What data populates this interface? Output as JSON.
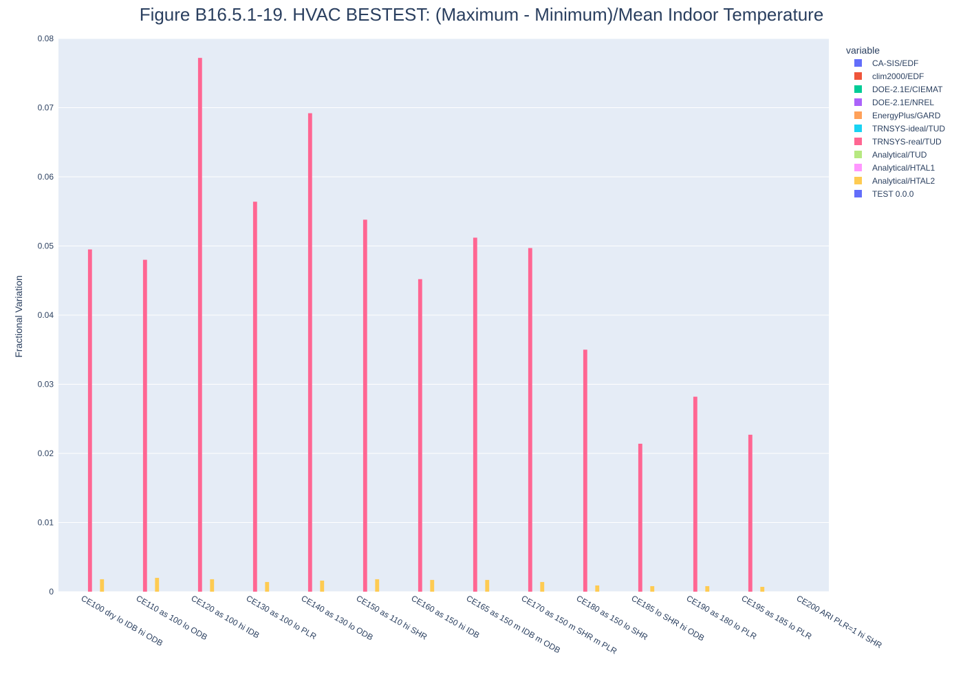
{
  "chart_data": {
    "type": "bar",
    "title": "Figure B16.5.1-19. HVAC BESTEST: (Maximum - Minimum)/Mean Indoor Temperature",
    "xlabel": "",
    "ylabel": "Fractional Variation",
    "ylim": [
      0,
      0.08
    ],
    "yticks": [
      0,
      0.01,
      0.02,
      0.03,
      0.04,
      0.05,
      0.06,
      0.07,
      0.08
    ],
    "ytick_labels": [
      "0",
      "0.01",
      "0.02",
      "0.03",
      "0.04",
      "0.05",
      "0.06",
      "0.07",
      "0.08"
    ],
    "grid": true,
    "legend_title": "variable",
    "legend_position": "right",
    "categories": [
      "CE100 dry lo IDB hi ODB",
      "CE110 as 100 lo ODB",
      "CE120 as 100 hi IDB",
      "CE130 as 100 lo PLR",
      "CE140 as 130 lo ODB",
      "CE150 as 110 hi SHR",
      "CE160 as 150 hi IDB",
      "CE165 as 150 m IDB m ODB",
      "CE170 as 150 m SHR m PLR",
      "CE180 as 150 lo SHR",
      "CE185 lo SHR hi ODB",
      "CE190 as 180 lo PLR",
      "CE195 as 185 lo PLR",
      "CE200 ARI  PLR=1 hi SHR"
    ],
    "series": [
      {
        "name": "CA-SIS/EDF",
        "color": "#636efa",
        "values": [
          null,
          null,
          null,
          null,
          null,
          null,
          null,
          null,
          null,
          null,
          null,
          null,
          null,
          null
        ]
      },
      {
        "name": "clim2000/EDF",
        "color": "#EF553B",
        "values": [
          null,
          null,
          null,
          null,
          null,
          null,
          null,
          null,
          null,
          null,
          null,
          null,
          null,
          null
        ]
      },
      {
        "name": "DOE-2.1E/CIEMAT",
        "color": "#00cc96",
        "values": [
          null,
          null,
          null,
          null,
          null,
          null,
          null,
          null,
          null,
          null,
          null,
          null,
          null,
          null
        ]
      },
      {
        "name": "DOE-2.1E/NREL",
        "color": "#ab63fa",
        "values": [
          null,
          null,
          null,
          null,
          null,
          null,
          null,
          null,
          null,
          null,
          null,
          null,
          null,
          null
        ]
      },
      {
        "name": "EnergyPlus/GARD",
        "color": "#FFA15A",
        "values": [
          null,
          null,
          null,
          null,
          null,
          null,
          null,
          null,
          null,
          null,
          null,
          null,
          null,
          null
        ]
      },
      {
        "name": "TRNSYS-ideal/TUD",
        "color": "#19d3f3",
        "values": [
          null,
          null,
          null,
          null,
          null,
          null,
          null,
          null,
          null,
          null,
          null,
          null,
          null,
          null
        ]
      },
      {
        "name": "TRNSYS-real/TUD",
        "color": "#FF6692",
        "values": [
          0.0495,
          0.048,
          0.0772,
          0.0564,
          0.0692,
          0.0538,
          0.0452,
          0.0512,
          0.0497,
          0.035,
          0.0214,
          0.0282,
          0.0227,
          null
        ]
      },
      {
        "name": "Analytical/TUD",
        "color": "#B6E880",
        "values": [
          null,
          null,
          null,
          null,
          null,
          null,
          null,
          null,
          null,
          null,
          null,
          null,
          null,
          null
        ]
      },
      {
        "name": "Analytical/HTAL1",
        "color": "#FF97FF",
        "values": [
          null,
          null,
          null,
          null,
          null,
          null,
          null,
          null,
          null,
          null,
          null,
          null,
          null,
          null
        ]
      },
      {
        "name": "Analytical/HTAL2",
        "color": "#FECB52",
        "values": [
          0.0018,
          0.002,
          0.0018,
          0.0014,
          0.0016,
          0.0018,
          0.0017,
          0.0017,
          0.0014,
          0.0009,
          0.0008,
          0.0008,
          0.0007,
          null
        ]
      },
      {
        "name": "TEST 0.0.0",
        "color": "#636efa",
        "values": [
          null,
          null,
          null,
          null,
          null,
          null,
          null,
          null,
          null,
          null,
          null,
          null,
          null,
          null
        ]
      }
    ]
  }
}
